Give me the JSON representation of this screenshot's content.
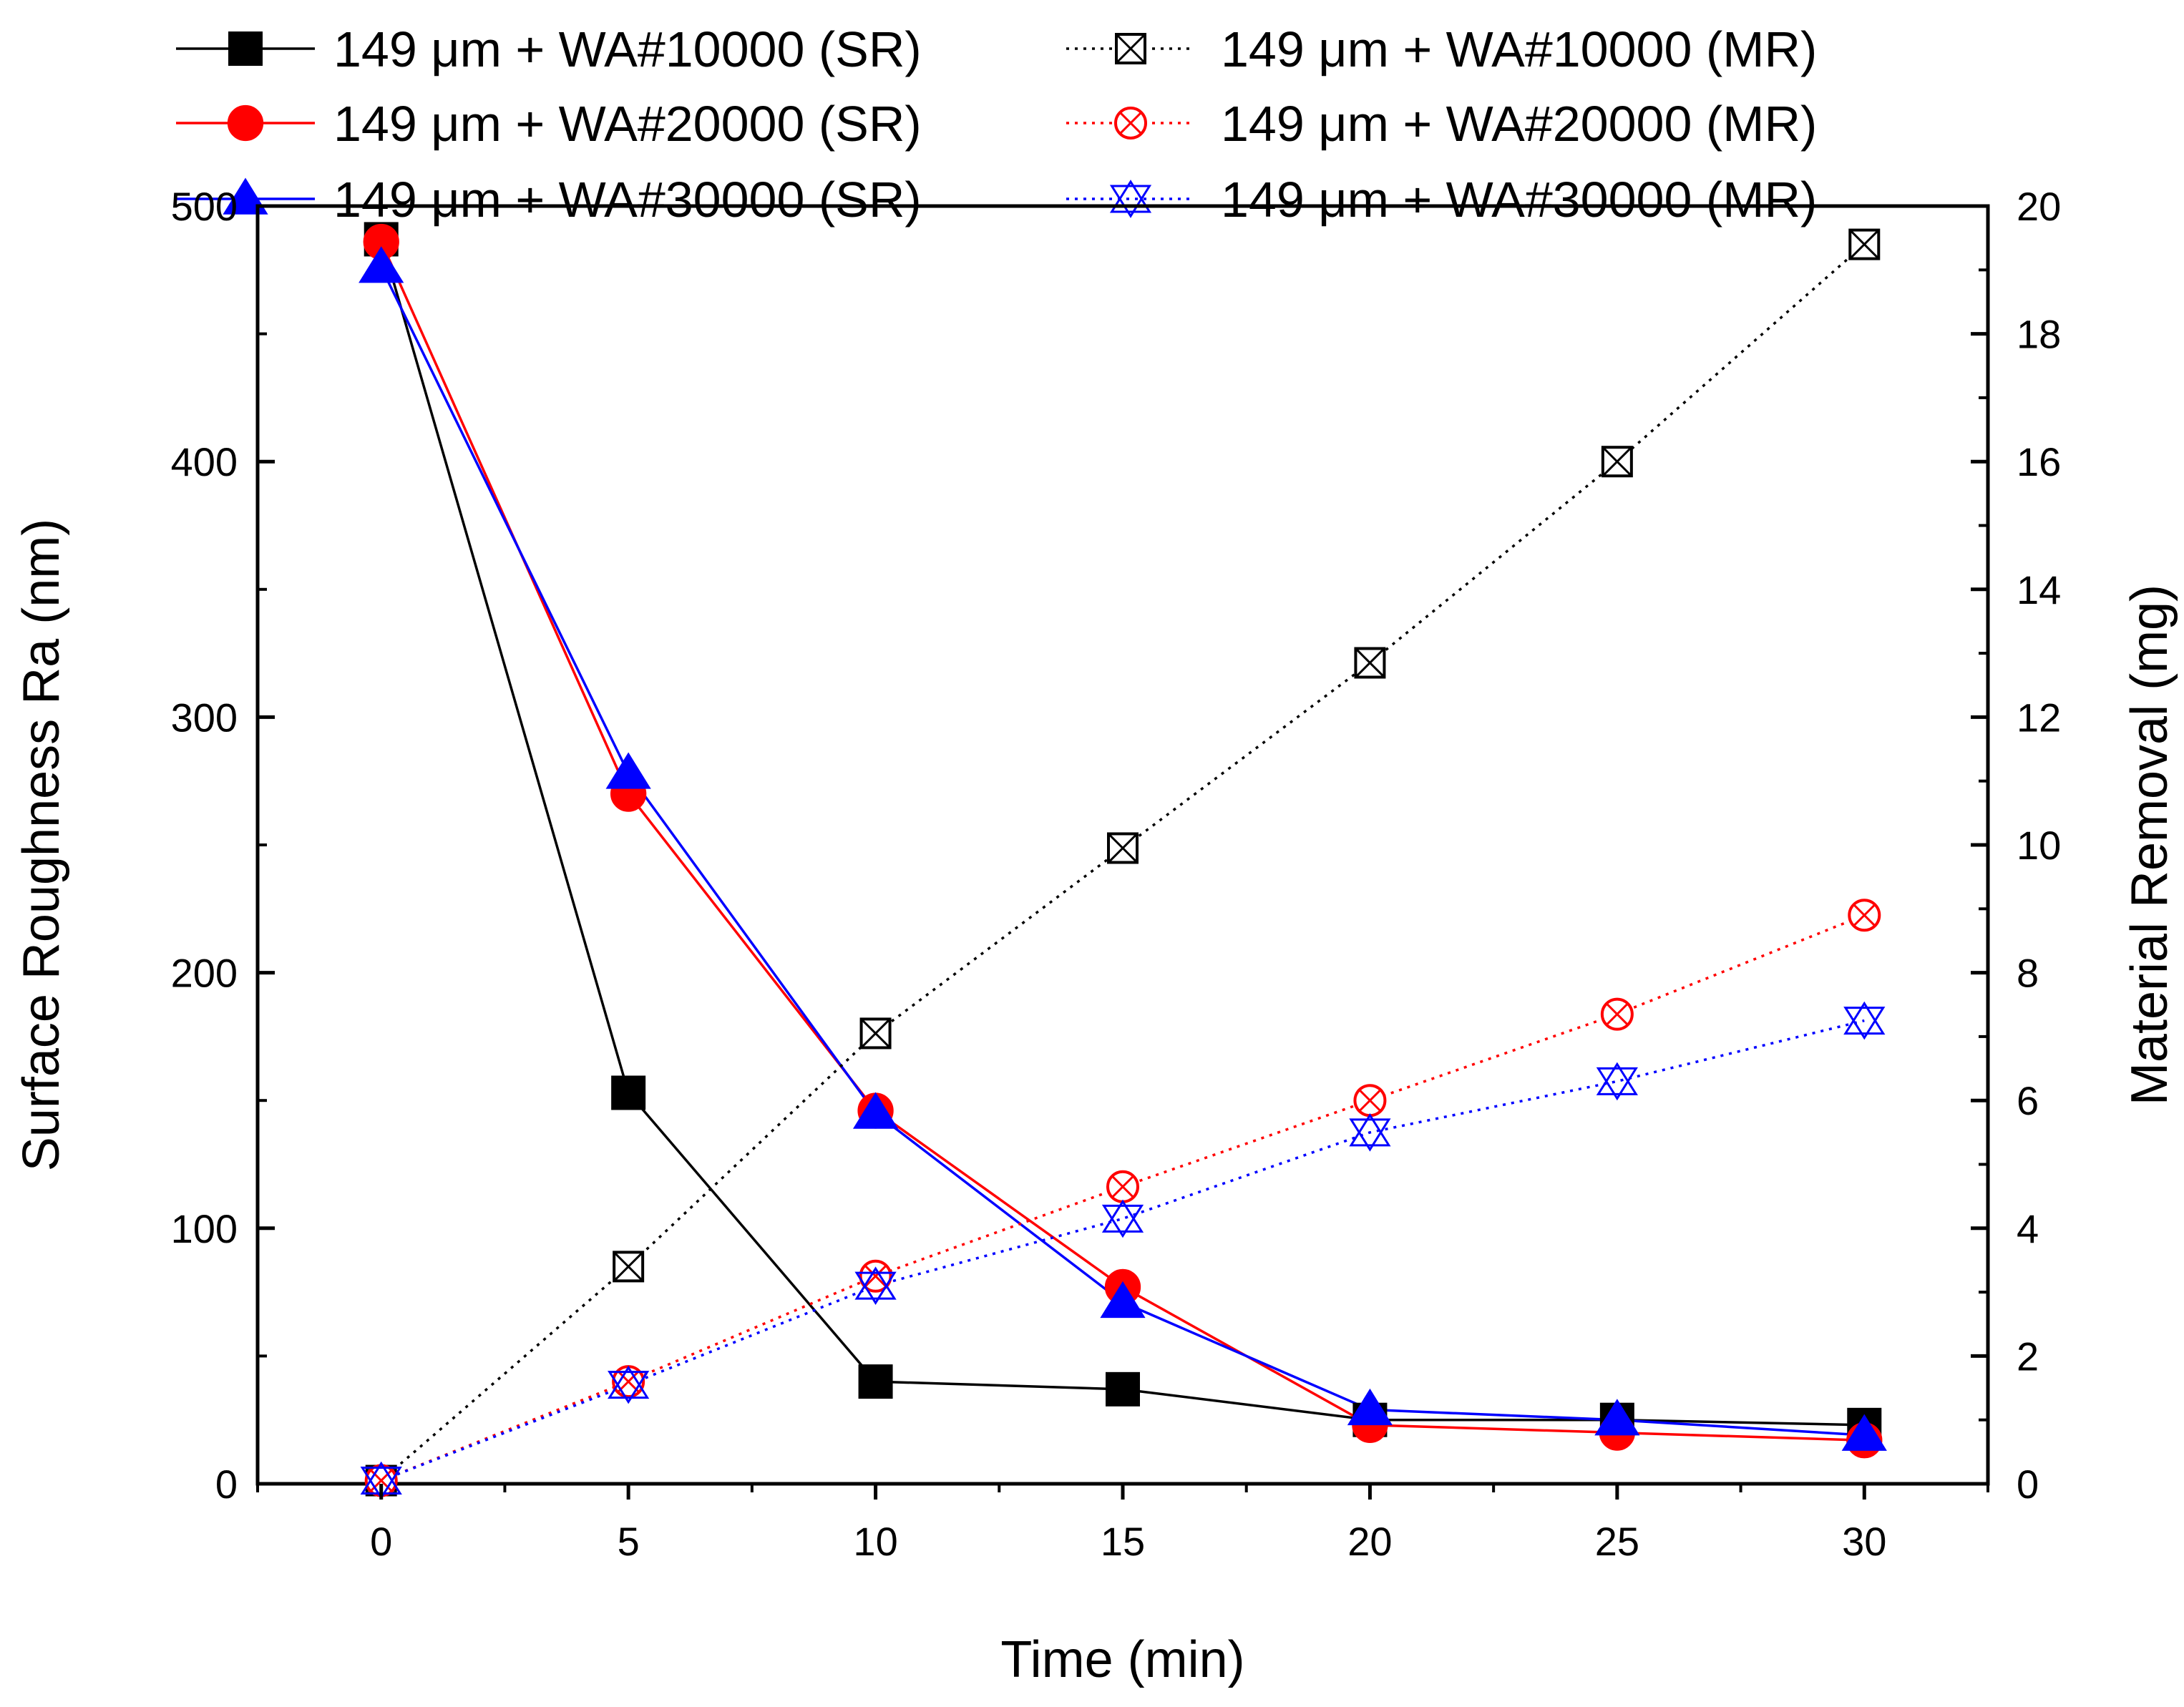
{
  "chart_data": {
    "type": "line",
    "x": [
      0,
      5,
      10,
      15,
      20,
      25,
      30
    ],
    "xlabel": "Time (min)",
    "ylabel_left": "Surface Roughness Ra (nm)",
    "ylabel_right": "Material Removal (mg)",
    "xlim": [
      -2.5,
      32.5
    ],
    "ylim_left": [
      0,
      500
    ],
    "ylim_right": [
      0,
      20
    ],
    "xticks": [
      "0",
      "5",
      "10",
      "15",
      "20",
      "25",
      "30"
    ],
    "yticks_left": [
      "0",
      "100",
      "200",
      "300",
      "400",
      "500"
    ],
    "yticks_right": [
      "0",
      "2",
      "4",
      "6",
      "8",
      "10",
      "12",
      "14",
      "16",
      "18",
      "20"
    ],
    "grid": false,
    "legend_position": "top",
    "series": [
      {
        "name": "149 μm + WA#10000 (SR)",
        "axis": "left",
        "color": "#000000",
        "marker": "square",
        "line": "solid",
        "values": [
          487,
          153,
          40,
          37,
          25,
          25,
          23
        ]
      },
      {
        "name": "149 μm + WA#20000 (SR)",
        "axis": "left",
        "color": "#ff0000",
        "marker": "circle",
        "line": "solid",
        "values": [
          486,
          270,
          146,
          77,
          23,
          20,
          17
        ]
      },
      {
        "name": "149 μm + WA#30000 (SR)",
        "axis": "left",
        "color": "#0000ff",
        "marker": "triangle",
        "line": "solid",
        "values": [
          476,
          278,
          145,
          71,
          29,
          25,
          19
        ]
      },
      {
        "name": "149 μm + WA#10000 (MR)",
        "axis": "right",
        "color": "#000000",
        "marker": "box-x",
        "line": "dotted",
        "values": [
          0.05,
          3.4,
          7.05,
          9.95,
          12.85,
          16.0,
          19.4
        ]
      },
      {
        "name": "149 μm + WA#20000 (MR)",
        "axis": "right",
        "color": "#ff0000",
        "marker": "circle-x",
        "line": "dotted",
        "values": [
          0.05,
          1.6,
          3.25,
          4.65,
          6.0,
          7.35,
          8.9
        ]
      },
      {
        "name": "149 μm + WA#30000 (MR)",
        "axis": "right",
        "color": "#0000ff",
        "marker": "triangle-x",
        "line": "dotted",
        "values": [
          0.05,
          1.55,
          3.1,
          4.15,
          5.5,
          6.3,
          7.25
        ]
      }
    ]
  }
}
